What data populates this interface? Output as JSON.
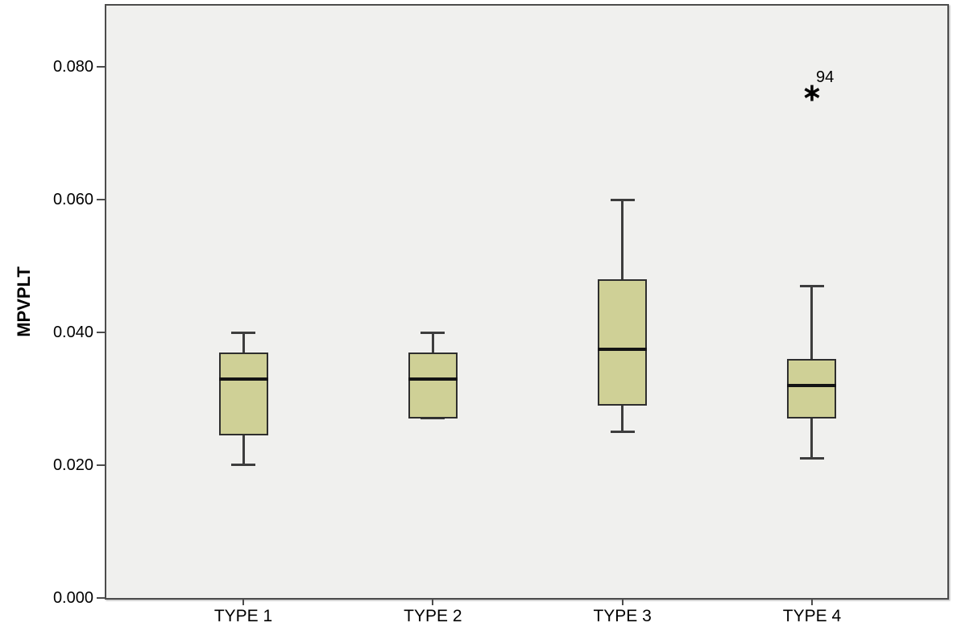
{
  "figure": {
    "background": "#ffffff",
    "plot_background": "#f0f0ee",
    "plot_border_color": "#4c4c4c",
    "box_fill_color": "#cfd096",
    "box_border_color": "#2e2e2e",
    "whisker_color": "#3d3d3d",
    "median_color": "#141414"
  },
  "chart_data": {
    "type": "boxplot",
    "title": "",
    "xlabel": "",
    "ylabel": "MPVPLT",
    "categories": [
      "TYPE 1",
      "TYPE 2",
      "TYPE 3",
      "TYPE 4"
    ],
    "ylim": [
      0,
      0.0892
    ],
    "yticks": {
      "values": [
        0.0,
        0.02,
        0.04,
        0.06,
        0.08
      ],
      "labels": [
        "0.000",
        "0.020",
        "0.040",
        "0.060",
        "0.080"
      ]
    },
    "grid": false,
    "legend": null,
    "series": [
      {
        "category": "TYPE 1",
        "whisker_low": 0.02,
        "q1": 0.0245,
        "median": 0.033,
        "q3": 0.037,
        "whisker_high": 0.04,
        "outliers": []
      },
      {
        "category": "TYPE 2",
        "whisker_low": 0.027,
        "q1": 0.027,
        "median": 0.033,
        "q3": 0.037,
        "whisker_high": 0.04,
        "outliers": []
      },
      {
        "category": "TYPE 3",
        "whisker_low": 0.025,
        "q1": 0.029,
        "median": 0.0375,
        "q3": 0.048,
        "whisker_high": 0.06,
        "outliers": []
      },
      {
        "category": "TYPE 4",
        "whisker_low": 0.021,
        "q1": 0.027,
        "median": 0.032,
        "q3": 0.036,
        "whisker_high": 0.047,
        "outliers": [
          {
            "value": 0.076,
            "label": "94",
            "marker": "asterisk",
            "marker_glyph": "∗"
          }
        ]
      }
    ]
  }
}
